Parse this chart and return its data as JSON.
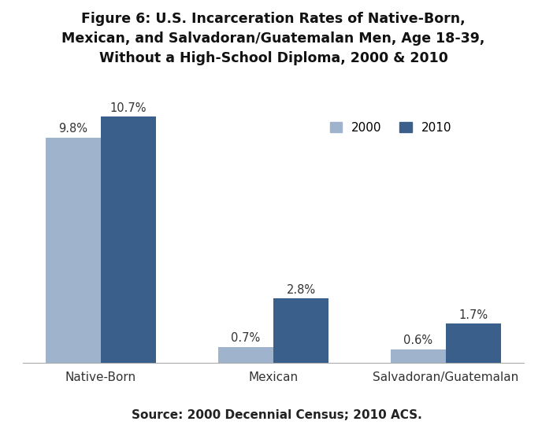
{
  "title": "Figure 6: U.S. Incarceration Rates of Native-Born,\nMexican, and Salvadoran/Guatemalan Men, Age 18-39,\nWithout a High-School Diploma, 2000 & 2010",
  "categories": [
    "Native-Born",
    "Mexican",
    "Salvadoran/Guatemalan"
  ],
  "values_2000": [
    9.8,
    0.7,
    0.6
  ],
  "values_2010": [
    10.7,
    2.8,
    1.7
  ],
  "labels_2000": [
    "9.8%",
    "0.7%",
    "0.6%"
  ],
  "labels_2010": [
    "10.7%",
    "2.8%",
    "1.7%"
  ],
  "color_2000": "#9fb3cc",
  "color_2010": "#3a5f8a",
  "background_color": "#ffffff",
  "ylim": [
    0,
    12.5
  ],
  "bar_width": 0.32,
  "title_fontsize": 12.5,
  "tick_fontsize": 11,
  "label_fontsize": 10.5,
  "legend_fontsize": 11,
  "source_text": "Source: 2000 Decennial Census; 2010 ACS.",
  "source_fontsize": 11
}
